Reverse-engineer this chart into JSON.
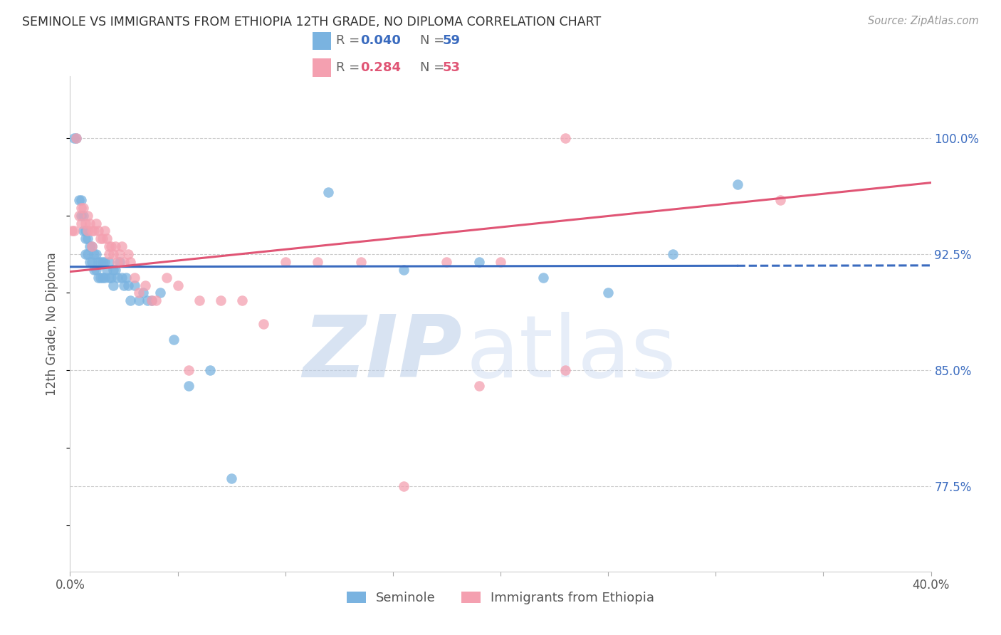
{
  "title": "SEMINOLE VS IMMIGRANTS FROM ETHIOPIA 12TH GRADE, NO DIPLOMA CORRELATION CHART",
  "source": "Source: ZipAtlas.com",
  "ylabel": "12th Grade, No Diploma",
  "ytick_vals": [
    0.775,
    0.85,
    0.925,
    1.0
  ],
  "xlim": [
    0.0,
    0.4
  ],
  "ylim": [
    0.72,
    1.04
  ],
  "blue_R": 0.04,
  "blue_N": 59,
  "pink_R": 0.284,
  "pink_N": 53,
  "blue_color": "#7ab3e0",
  "pink_color": "#f4a0b0",
  "blue_line_color": "#3a6bbf",
  "pink_line_color": "#e05575",
  "legend_label_blue": "Seminole",
  "legend_label_pink": "Immigrants from Ethiopia",
  "watermark_zip": "ZIP",
  "watermark_atlas": "atlas",
  "blue_points_x": [
    0.002,
    0.003,
    0.004,
    0.005,
    0.005,
    0.006,
    0.006,
    0.007,
    0.007,
    0.007,
    0.008,
    0.008,
    0.009,
    0.009,
    0.01,
    0.01,
    0.011,
    0.011,
    0.012,
    0.012,
    0.013,
    0.013,
    0.014,
    0.014,
    0.015,
    0.015,
    0.016,
    0.016,
    0.017,
    0.018,
    0.018,
    0.019,
    0.02,
    0.02,
    0.021,
    0.022,
    0.023,
    0.024,
    0.025,
    0.026,
    0.027,
    0.028,
    0.03,
    0.032,
    0.034,
    0.036,
    0.038,
    0.042,
    0.048,
    0.055,
    0.065,
    0.075,
    0.12,
    0.155,
    0.19,
    0.22,
    0.25,
    0.28,
    0.31
  ],
  "blue_points_y": [
    1.0,
    1.0,
    0.96,
    0.96,
    0.95,
    0.95,
    0.94,
    0.94,
    0.935,
    0.925,
    0.935,
    0.925,
    0.93,
    0.92,
    0.93,
    0.92,
    0.925,
    0.915,
    0.925,
    0.915,
    0.92,
    0.91,
    0.92,
    0.91,
    0.92,
    0.91,
    0.92,
    0.91,
    0.915,
    0.92,
    0.91,
    0.91,
    0.915,
    0.905,
    0.915,
    0.91,
    0.92,
    0.91,
    0.905,
    0.91,
    0.905,
    0.895,
    0.905,
    0.895,
    0.9,
    0.895,
    0.895,
    0.9,
    0.87,
    0.84,
    0.85,
    0.78,
    0.965,
    0.915,
    0.92,
    0.91,
    0.9,
    0.925,
    0.97
  ],
  "pink_points_x": [
    0.001,
    0.002,
    0.003,
    0.004,
    0.005,
    0.005,
    0.006,
    0.007,
    0.008,
    0.008,
    0.009,
    0.01,
    0.01,
    0.011,
    0.012,
    0.013,
    0.014,
    0.015,
    0.016,
    0.017,
    0.018,
    0.018,
    0.019,
    0.02,
    0.021,
    0.022,
    0.023,
    0.024,
    0.025,
    0.027,
    0.028,
    0.03,
    0.032,
    0.035,
    0.038,
    0.04,
    0.045,
    0.05,
    0.055,
    0.06,
    0.07,
    0.08,
    0.09,
    0.1,
    0.115,
    0.135,
    0.155,
    0.175,
    0.2,
    0.23,
    0.19,
    0.23,
    0.33
  ],
  "pink_points_y": [
    0.94,
    0.94,
    1.0,
    0.95,
    0.955,
    0.945,
    0.955,
    0.945,
    0.95,
    0.94,
    0.945,
    0.94,
    0.93,
    0.94,
    0.945,
    0.94,
    0.935,
    0.935,
    0.94,
    0.935,
    0.93,
    0.925,
    0.93,
    0.925,
    0.93,
    0.92,
    0.925,
    0.93,
    0.92,
    0.925,
    0.92,
    0.91,
    0.9,
    0.905,
    0.895,
    0.895,
    0.91,
    0.905,
    0.85,
    0.895,
    0.895,
    0.895,
    0.88,
    0.92,
    0.92,
    0.92,
    0.775,
    0.92,
    0.92,
    0.85,
    0.84,
    1.0,
    0.96
  ],
  "blue_line_intercept": 0.905,
  "blue_line_slope": 0.04,
  "pink_line_intercept": 0.88,
  "pink_line_slope": 0.35
}
